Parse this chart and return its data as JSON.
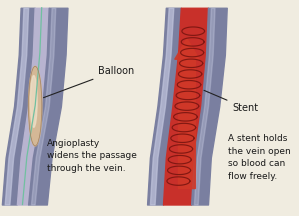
{
  "bg_color": "#f0ece0",
  "vein_wall_color": "#7a7fa0",
  "vein_wall_dark": "#5a5f80",
  "vein_lumen_color": "#b8b4d0",
  "vein_highlight": "#c0c4dc",
  "balloon_outer_color": "#d4b896",
  "balloon_inner_color": "#ede0c8",
  "stent_fill_color": "#c8302a",
  "stent_metal_color": "#7a1510",
  "arrow_color": "#c8302a",
  "catheter_color": "#70c0a0",
  "text_color": "#1a1a1a",
  "label_font_size": 7,
  "caption_font_size": 6.5,
  "balloon_label": "Balloon",
  "stent_label": "Stent",
  "caption_left": "Angioplasty\nwidens the passage\nthrough the vein.",
  "caption_right": "A stent holds\nthe vein open\nso blood can\nflow freely."
}
